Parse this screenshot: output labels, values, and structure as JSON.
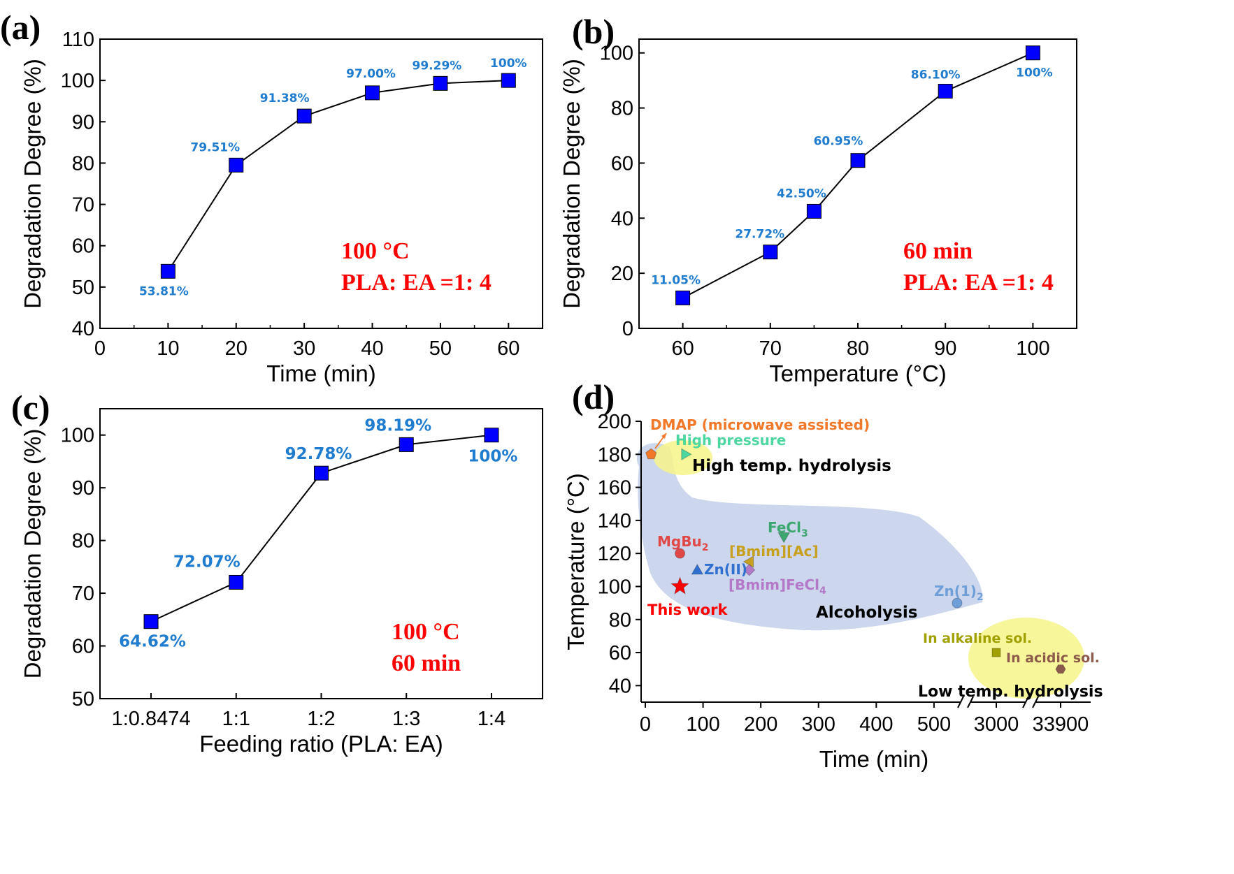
{
  "panels": [
    {
      "letter": "(a)",
      "chart_data": {
        "type": "line",
        "xlabel": "Time (min)",
        "ylabel": "Degradation Degree (%)",
        "xlim": [
          0,
          65
        ],
        "ylim": [
          40,
          110
        ],
        "xticks": [
          0,
          10,
          20,
          30,
          40,
          50,
          60
        ],
        "yticks": [
          40,
          50,
          60,
          70,
          80,
          90,
          100,
          110
        ],
        "x": [
          10,
          20,
          30,
          40,
          50,
          60
        ],
        "y": [
          53.81,
          79.51,
          91.38,
          97.0,
          99.29,
          100
        ],
        "point_labels": [
          "53.81%",
          "79.51%",
          "91.38%",
          "97.00%",
          "99.29%",
          "100%"
        ],
        "conditions": [
          "100 °C",
          "PLA: EA =1: 4"
        ]
      }
    },
    {
      "letter": "(b)",
      "chart_data": {
        "type": "line",
        "xlabel": "Temperature (°C)",
        "ylabel": "Degradation Degree (%)",
        "xlim": [
          55,
          105
        ],
        "ylim": [
          0,
          105
        ],
        "xticks": [
          60,
          70,
          80,
          90,
          100
        ],
        "yticks": [
          0,
          20,
          40,
          60,
          80,
          100
        ],
        "x": [
          60,
          70,
          75,
          80,
          90,
          100
        ],
        "y": [
          11.05,
          27.72,
          42.5,
          60.95,
          86.1,
          100
        ],
        "point_labels": [
          "11.05%",
          "27.72%",
          "42.50%",
          "60.95%",
          "86.10%",
          "100%"
        ],
        "conditions": [
          "60 min",
          "PLA: EA =1: 4"
        ]
      }
    },
    {
      "letter": "(c)",
      "chart_data": {
        "type": "line",
        "xlabel": "Feeding ratio (PLA: EA)",
        "ylabel": "Degradation Degree (%)",
        "categories": [
          "1:0.8474",
          "1:1",
          "1:2",
          "1:3",
          "1:4"
        ],
        "ylim": [
          50,
          105
        ],
        "yticks": [
          50,
          60,
          70,
          80,
          90,
          100
        ],
        "values": [
          64.62,
          72.07,
          92.78,
          98.19,
          100
        ],
        "point_labels": [
          "64.62%",
          "72.07%",
          "92.78%",
          "98.19%",
          "100%"
        ],
        "conditions": [
          "100 °C",
          "60 min"
        ]
      }
    },
    {
      "letter": "(d)",
      "chart_data": {
        "type": "scatter",
        "xlabel": "Time (min)",
        "ylabel": "Temperature (°C)",
        "ylim": [
          30,
          200
        ],
        "yticks": [
          40,
          60,
          80,
          100,
          120,
          140,
          160,
          180,
          200
        ],
        "xtick_labels": [
          "0",
          "100",
          "200",
          "300",
          "400",
          "500",
          "3000",
          "33900"
        ],
        "x_scale": "broken",
        "points": [
          {
            "name": "DMAP (microwave assisted)",
            "x": 10,
            "y": 180,
            "color": "#f07828",
            "marker": "pentagon"
          },
          {
            "name": "High pressure",
            "x": 70,
            "y": 180,
            "color": "#4cd6a0",
            "marker": "triangle-right"
          },
          {
            "name": "FeCl₃",
            "x": 240,
            "y": 130,
            "color": "#3ca870",
            "marker": "triangle-down"
          },
          {
            "name": "MgBu₂",
            "x": 60,
            "y": 120,
            "color": "#e04848",
            "marker": "circle"
          },
          {
            "name": "[Bmim][Ac]",
            "x": 180,
            "y": 115,
            "color": "#c8a020",
            "marker": "triangle-left"
          },
          {
            "name": "Zn(II)",
            "x": 90,
            "y": 110,
            "color": "#2f6fd0",
            "marker": "triangle-up"
          },
          {
            "name": "[Bmim]FeCl₄",
            "x": 180,
            "y": 110,
            "color": "#b478c8",
            "marker": "diamond"
          },
          {
            "name": "This work",
            "x": 60,
            "y": 100,
            "color": "#ff0000",
            "marker": "star"
          },
          {
            "name": "Zn(1)₂",
            "x": 540,
            "y": 90,
            "color": "#6f9fd8",
            "marker": "circle"
          },
          {
            "name": "In alkaline sol.",
            "x": 3000,
            "y": 60,
            "color": "#a0a000",
            "marker": "square"
          },
          {
            "name": "In acidic sol.",
            "x": 33900,
            "y": 50,
            "color": "#8c5a4a",
            "marker": "hexagon"
          }
        ],
        "regions": [
          {
            "name": "High temp. hydrolysis",
            "color": "#f5f07a"
          },
          {
            "name": "Alcoholysis",
            "color": "#b4c4e8"
          },
          {
            "name": "Low temp. hydrolysis",
            "color": "#f5f07a"
          }
        ]
      }
    }
  ],
  "colors": {
    "marker": "#0000ff",
    "label": "#1f7ccf",
    "condition": "#ff0000"
  }
}
